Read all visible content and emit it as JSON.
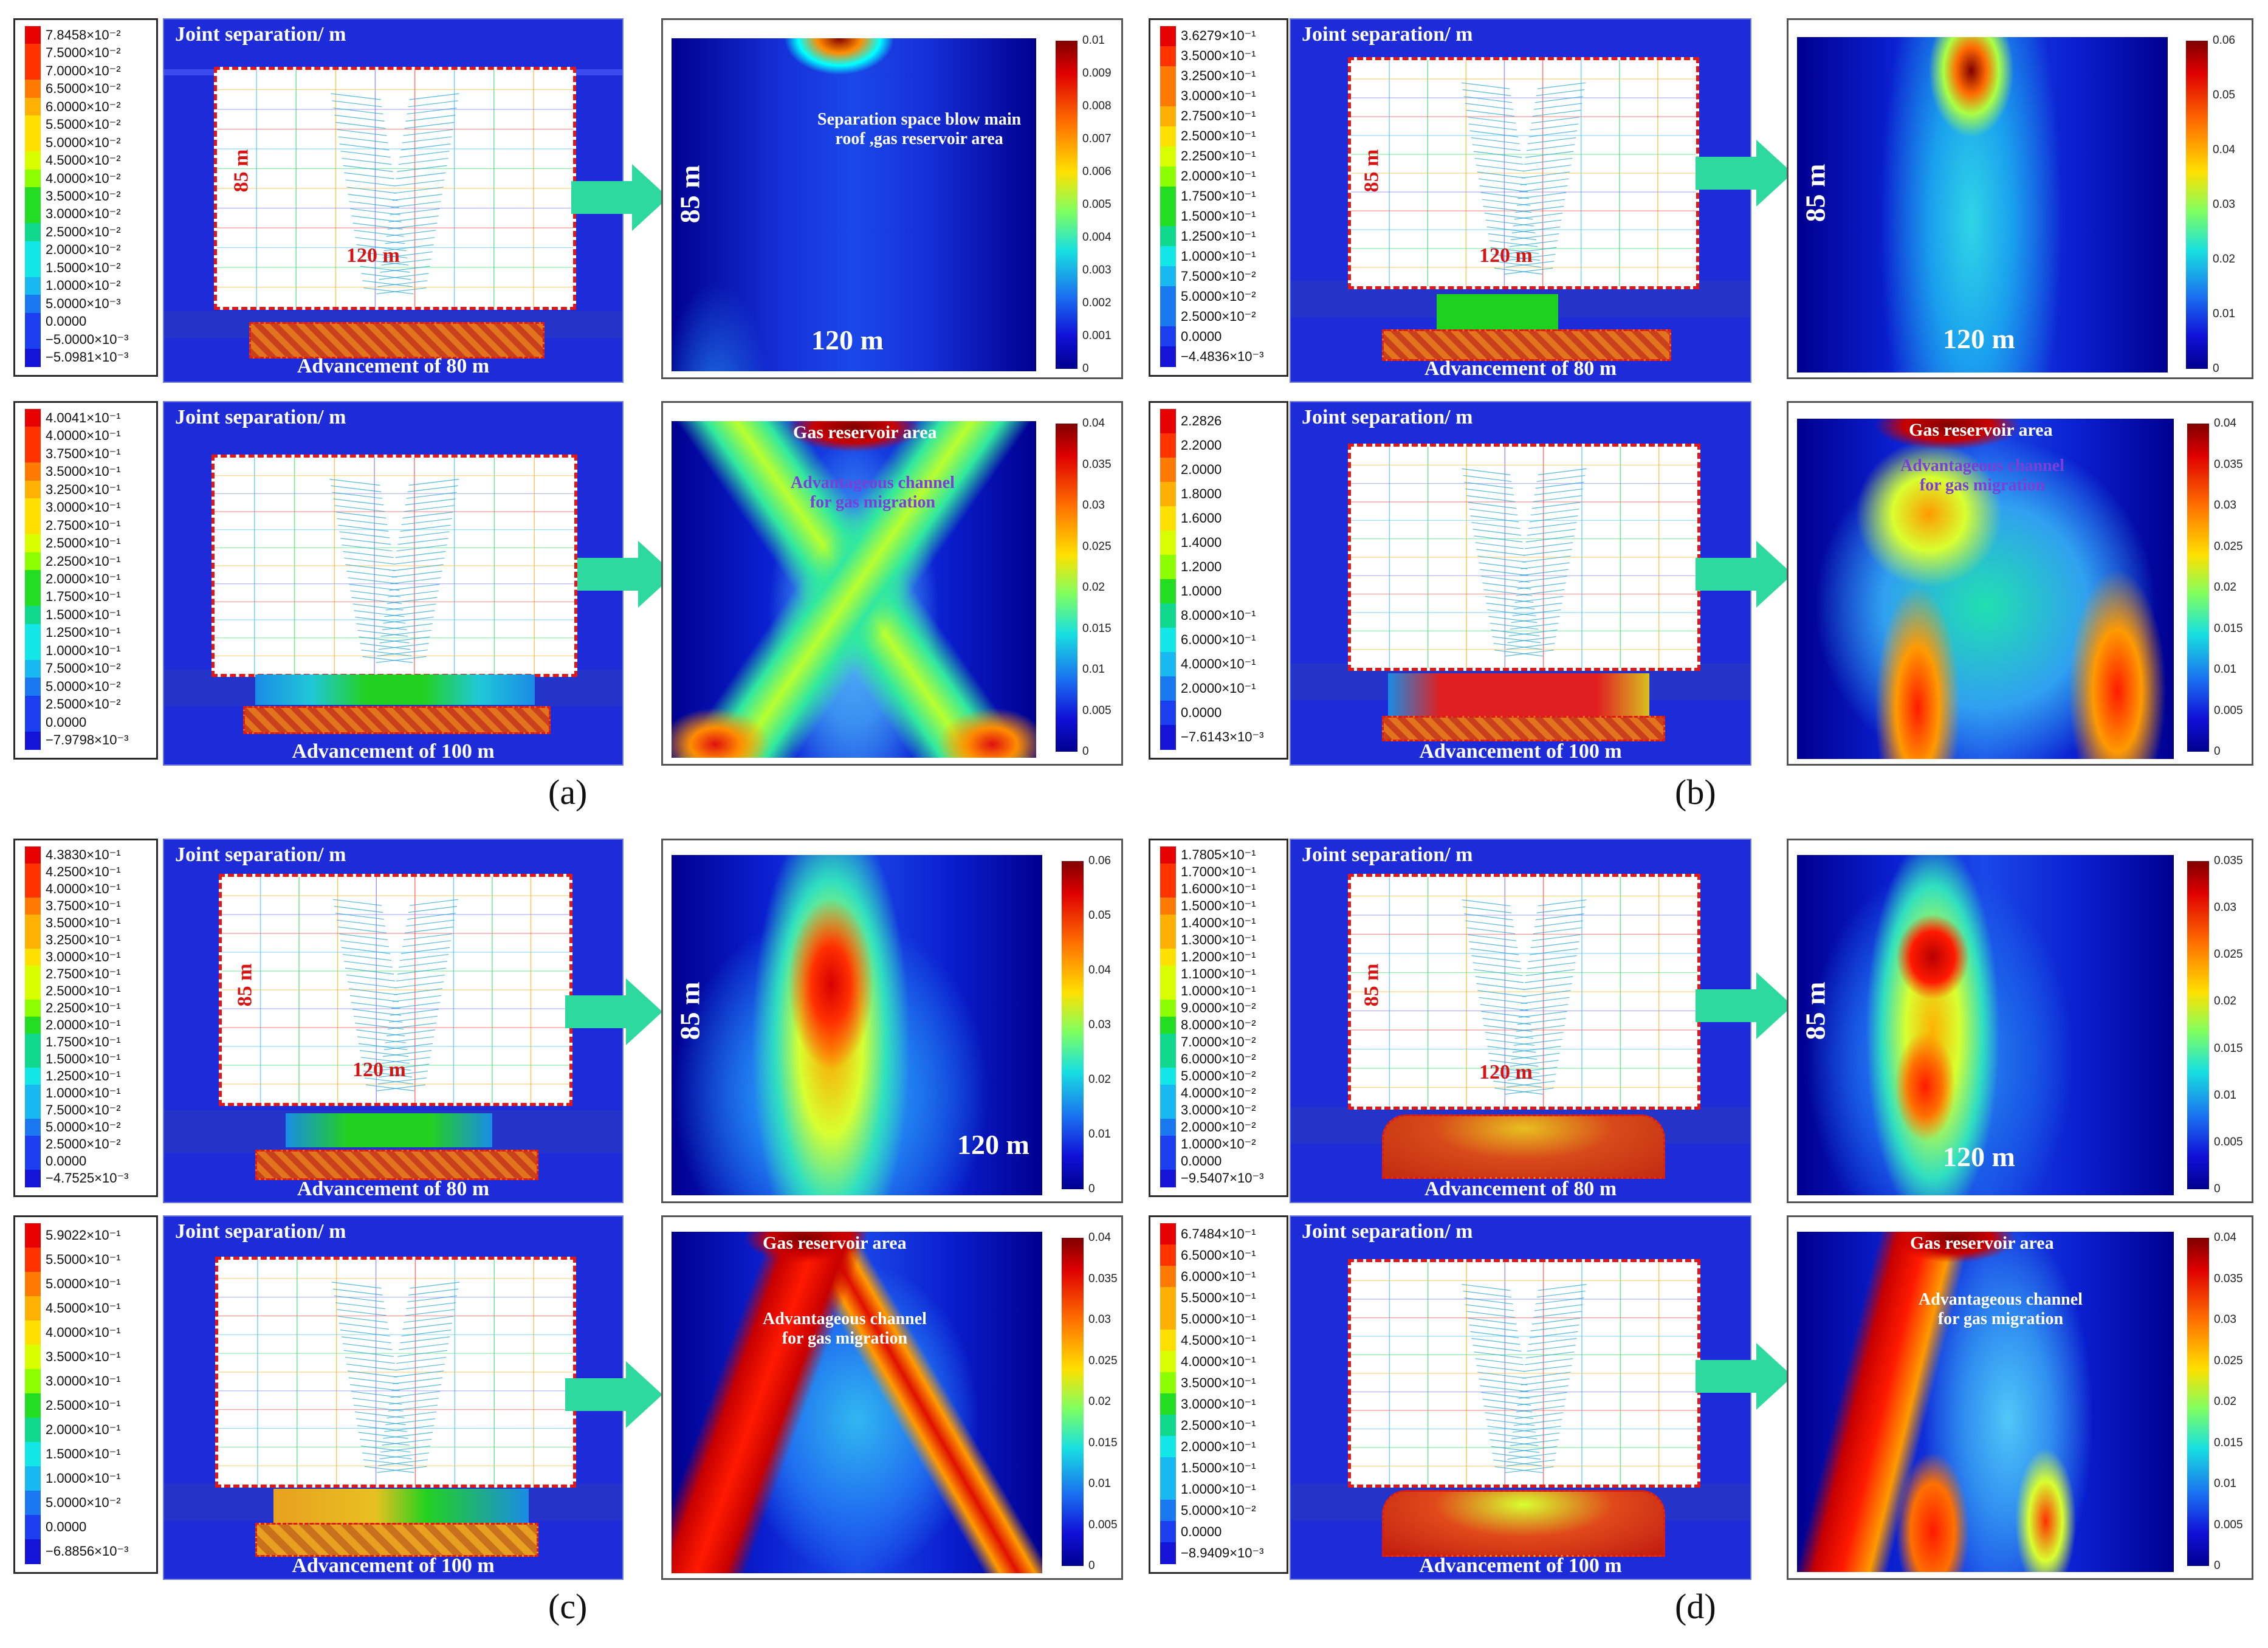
{
  "captions": [
    "(a)",
    "(b)",
    "(c)",
    "(d)"
  ],
  "labels": {
    "joint_separation": "Joint separation/ m",
    "adv80": "Advancement of 80 m",
    "adv100": "Advancement of 100 m",
    "dim85": "85 m",
    "dim120": "120 m",
    "gas_reservoir": "Gas reservoir area",
    "channel_line1": "Advantageous channel",
    "channel_line2": "for gas migration",
    "separation_line1": "Separation space blow main",
    "separation_line2": "roof ,gas reservoir area"
  },
  "legends": {
    "a80": [
      "7.8458×10⁻²",
      "7.5000×10⁻²",
      "7.0000×10⁻²",
      "6.5000×10⁻²",
      "6.0000×10⁻²",
      "5.5000×10⁻²",
      "5.0000×10⁻²",
      "4.5000×10⁻²",
      "4.0000×10⁻²",
      "3.5000×10⁻²",
      "3.0000×10⁻²",
      "2.5000×10⁻²",
      "2.0000×10⁻²",
      "1.5000×10⁻²",
      "1.0000×10⁻²",
      "5.0000×10⁻³",
      "0.0000",
      "−5.0000×10⁻³",
      "−5.0981×10⁻³"
    ],
    "a100": [
      "4.0041×10⁻¹",
      "4.0000×10⁻¹",
      "3.7500×10⁻¹",
      "3.5000×10⁻¹",
      "3.2500×10⁻¹",
      "3.0000×10⁻¹",
      "2.7500×10⁻¹",
      "2.5000×10⁻¹",
      "2.2500×10⁻¹",
      "2.0000×10⁻¹",
      "1.7500×10⁻¹",
      "1.5000×10⁻¹",
      "1.2500×10⁻¹",
      "1.0000×10⁻¹",
      "7.5000×10⁻²",
      "5.0000×10⁻²",
      "2.5000×10⁻²",
      "0.0000",
      "−7.9798×10⁻³"
    ],
    "b80": [
      "3.6279×10⁻¹",
      "3.5000×10⁻¹",
      "3.2500×10⁻¹",
      "3.0000×10⁻¹",
      "2.7500×10⁻¹",
      "2.5000×10⁻¹",
      "2.2500×10⁻¹",
      "2.0000×10⁻¹",
      "1.7500×10⁻¹",
      "1.5000×10⁻¹",
      "1.2500×10⁻¹",
      "1.0000×10⁻¹",
      "7.5000×10⁻²",
      "5.0000×10⁻²",
      "2.5000×10⁻²",
      "0.0000",
      "−4.4836×10⁻³"
    ],
    "b100": [
      "2.2826",
      "2.2000",
      "2.0000",
      "1.8000",
      "1.6000",
      "1.4000",
      "1.2000",
      "1.0000",
      "8.0000×10⁻¹",
      "6.0000×10⁻¹",
      "4.0000×10⁻¹",
      "2.0000×10⁻¹",
      "0.0000",
      "−7.6143×10⁻³"
    ],
    "c80": [
      "4.3830×10⁻¹",
      "4.2500×10⁻¹",
      "4.0000×10⁻¹",
      "3.7500×10⁻¹",
      "3.5000×10⁻¹",
      "3.2500×10⁻¹",
      "3.0000×10⁻¹",
      "2.7500×10⁻¹",
      "2.5000×10⁻¹",
      "2.2500×10⁻¹",
      "2.0000×10⁻¹",
      "1.7500×10⁻¹",
      "1.5000×10⁻¹",
      "1.2500×10⁻¹",
      "1.0000×10⁻¹",
      "7.5000×10⁻²",
      "5.0000×10⁻²",
      "2.5000×10⁻²",
      "0.0000",
      "−4.7525×10⁻³"
    ],
    "c100": [
      "5.9022×10⁻¹",
      "5.5000×10⁻¹",
      "5.0000×10⁻¹",
      "4.5000×10⁻¹",
      "4.0000×10⁻¹",
      "3.5000×10⁻¹",
      "3.0000×10⁻¹",
      "2.5000×10⁻¹",
      "2.0000×10⁻¹",
      "1.5000×10⁻¹",
      "1.0000×10⁻¹",
      "5.0000×10⁻²",
      "0.0000",
      "−6.8856×10⁻³"
    ],
    "d80": [
      "1.7805×10⁻¹",
      "1.7000×10⁻¹",
      "1.6000×10⁻¹",
      "1.5000×10⁻¹",
      "1.4000×10⁻¹",
      "1.3000×10⁻¹",
      "1.2000×10⁻¹",
      "1.1000×10⁻¹",
      "1.0000×10⁻¹",
      "9.0000×10⁻²",
      "8.0000×10⁻²",
      "7.0000×10⁻²",
      "6.0000×10⁻²",
      "5.0000×10⁻²",
      "4.0000×10⁻²",
      "3.0000×10⁻²",
      "2.0000×10⁻²",
      "1.0000×10⁻²",
      "0.0000",
      "−9.5407×10⁻³"
    ],
    "d100": [
      "6.7484×10⁻¹",
      "6.5000×10⁻¹",
      "6.0000×10⁻¹",
      "5.5000×10⁻¹",
      "5.0000×10⁻¹",
      "4.5000×10⁻¹",
      "4.0000×10⁻¹",
      "3.5000×10⁻¹",
      "3.0000×10⁻¹",
      "2.5000×10⁻¹",
      "2.0000×10⁻¹",
      "1.5000×10⁻¹",
      "1.0000×10⁻¹",
      "5.0000×10⁻²",
      "0.0000",
      "−8.9409×10⁻³"
    ]
  },
  "colorbars": {
    "a80": [
      "0.01",
      "0.009",
      "0.008",
      "0.007",
      "0.006",
      "0.005",
      "0.004",
      "0.003",
      "0.002",
      "0.001",
      "0"
    ],
    "a100": [
      "0.04",
      "0.035",
      "0.03",
      "0.025",
      "0.02",
      "0.015",
      "0.01",
      "0.005",
      "0"
    ],
    "b80": [
      "0.06",
      "0.05",
      "0.04",
      "0.03",
      "0.02",
      "0.01",
      "0"
    ],
    "b100": [
      "0.04",
      "0.035",
      "0.03",
      "0.025",
      "0.02",
      "0.015",
      "0.01",
      "0.005",
      "0"
    ],
    "c80": [
      "0.06",
      "0.05",
      "0.04",
      "0.03",
      "0.02",
      "0.01",
      "0"
    ],
    "c100": [
      "0.04",
      "0.035",
      "0.03",
      "0.025",
      "0.02",
      "0.015",
      "0.01",
      "0.005",
      "0"
    ],
    "d80": [
      "0.035",
      "0.03",
      "0.025",
      "0.02",
      "0.015",
      "0.01",
      "0.005",
      "0"
    ],
    "d100": [
      "0.04",
      "0.035",
      "0.03",
      "0.025",
      "0.02",
      "0.015",
      "0.01",
      "0.005",
      "0"
    ]
  },
  "colors": {
    "model_blue": "#1d2bd8",
    "dash_red": "#e21818",
    "arrow_green": "#2ed9a0",
    "jet_low": "#00008f",
    "jet_high": "#800000"
  }
}
